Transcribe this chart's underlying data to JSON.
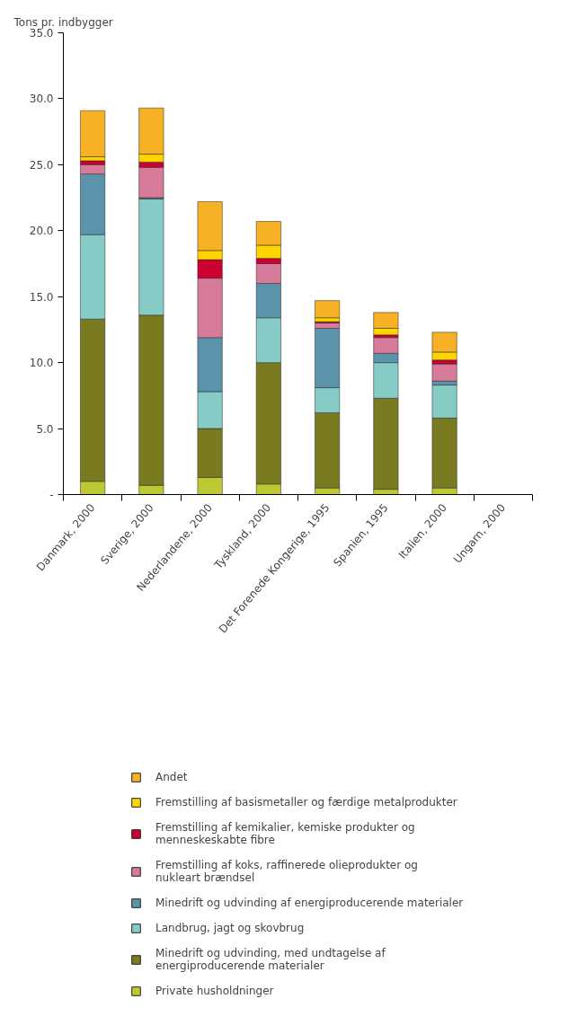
{
  "chart_data": {
    "type": "bar",
    "stacked": true,
    "ylabel": "Tons pr. indbygger",
    "categories": [
      "Danmark, 2000",
      "Sverige, 2000",
      "Nederlandene, 2000",
      "Tyskland, 2000",
      "Det Forenede Kongerige, 1995",
      "Spanien, 1995",
      "Italien, 2000",
      "Ungarn, 2000"
    ],
    "series": [
      {
        "name": "Private husholdninger",
        "color": "#bec832",
        "values": [
          1.0,
          0.7,
          1.3,
          0.8,
          0.5,
          0.4,
          0.5,
          null
        ]
      },
      {
        "name": "Minedrift og udvinding, med undtagelse af energiproducerende materialer",
        "color": "#7a7b20",
        "values": [
          12.3,
          12.9,
          3.7,
          9.2,
          5.7,
          6.9,
          5.3,
          null
        ]
      },
      {
        "name": "Landbrug, jagt og skovbrug",
        "color": "#86cbc6",
        "values": [
          6.4,
          8.8,
          2.8,
          3.4,
          1.9,
          2.7,
          2.5,
          null
        ]
      },
      {
        "name": "Minedrift og udvinding af energiproducerende materialer",
        "color": "#5b93ab",
        "values": [
          4.6,
          0.1,
          4.1,
          2.6,
          4.5,
          0.7,
          0.3,
          null
        ]
      },
      {
        "name": "Fremstilling af koks, raffinerede olieprodukter og nukleart brændsel",
        "color": "#d77b9a",
        "values": [
          0.7,
          2.3,
          4.5,
          1.5,
          0.4,
          1.2,
          1.3,
          null
        ]
      },
      {
        "name": "Fremstilling af kemikalier, kemiske produkter og menneskeskabte fibre",
        "color": "#cc0033",
        "values": [
          0.3,
          0.4,
          1.4,
          0.4,
          0.1,
          0.2,
          0.3,
          null
        ]
      },
      {
        "name": "Fremstilling af basismetaller og færdige metalprodukter",
        "color": "#ffd500",
        "values": [
          0.3,
          0.6,
          0.7,
          1.0,
          0.3,
          0.5,
          0.6,
          null
        ]
      },
      {
        "name": "Andet",
        "color": "#f7b125",
        "values": [
          3.5,
          3.5,
          3.7,
          1.8,
          1.3,
          1.2,
          1.5,
          null
        ]
      }
    ],
    "ylim": [
      0,
      35
    ],
    "yticks": [
      {
        "value": 0,
        "label": "-"
      },
      {
        "value": 5,
        "label": "5.0"
      },
      {
        "value": 10,
        "label": "10.0"
      },
      {
        "value": 15,
        "label": "15.0"
      },
      {
        "value": 20,
        "label": "20.0"
      },
      {
        "value": 25,
        "label": "25.0"
      },
      {
        "value": 30,
        "label": "30.0"
      },
      {
        "value": 35,
        "label": "35.0"
      }
    ],
    "grid": false,
    "legend": "bottom"
  }
}
